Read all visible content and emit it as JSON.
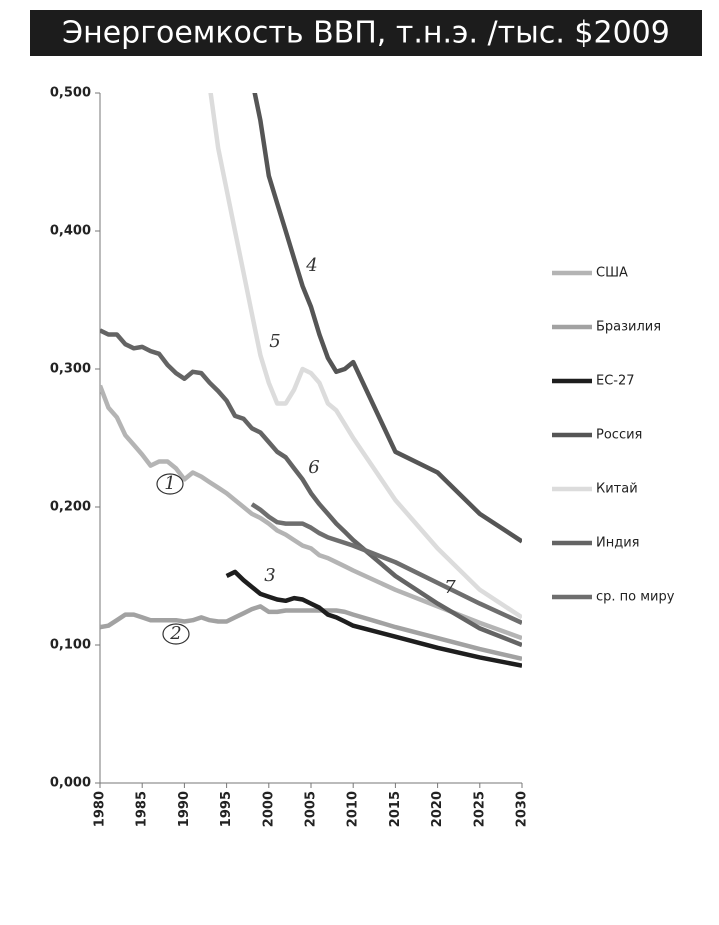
{
  "chart_data": {
    "type": "line",
    "title": "Энергоемкость ВВП, т.н.э. /тыс. $2009",
    "x": [
      1980,
      1981,
      1982,
      1983,
      1984,
      1985,
      1986,
      1987,
      1988,
      1989,
      1990,
      1991,
      1992,
      1993,
      1994,
      1995,
      1996,
      1997,
      1998,
      1999,
      2000,
      2001,
      2002,
      2003,
      2004,
      2005,
      2006,
      2007,
      2008,
      2009,
      2010,
      2015,
      2020,
      2025,
      2030
    ],
    "xlim": [
      1980,
      2030
    ],
    "xticks": [
      1980,
      1985,
      1990,
      1995,
      2000,
      2005,
      2010,
      2015,
      2020,
      2025,
      2030
    ],
    "ylim": [
      0,
      0.5
    ],
    "yticks": [
      {
        "value": 0,
        "label": "0,000"
      },
      {
        "value": 0.1,
        "label": "0,100"
      },
      {
        "value": 0.2,
        "label": "0,200"
      },
      {
        "value": 0.3,
        "label": "0,300"
      },
      {
        "value": 0.4,
        "label": "0,400"
      },
      {
        "value": 0.5,
        "label": "0,500"
      }
    ],
    "series": [
      {
        "name": "США",
        "color": "#b4b4b4",
        "values": [
          0.288,
          0.272,
          0.265,
          0.252,
          0.245,
          0.238,
          0.23,
          0.233,
          0.233,
          0.228,
          0.22,
          0.225,
          0.222,
          0.218,
          0.214,
          0.21,
          0.205,
          0.2,
          0.195,
          0.192,
          0.188,
          0.183,
          0.18,
          0.176,
          0.172,
          0.17,
          0.165,
          0.163,
          0.16,
          0.157,
          0.154,
          0.14,
          0.128,
          0.116,
          0.105
        ]
      },
      {
        "name": "Бразилия",
        "color": "#a2a2a2",
        "values": [
          0.113,
          0.114,
          0.118,
          0.122,
          0.122,
          0.12,
          0.118,
          0.118,
          0.118,
          0.118,
          0.117,
          0.118,
          0.12,
          0.118,
          0.117,
          0.117,
          0.12,
          0.123,
          0.126,
          0.128,
          0.124,
          0.124,
          0.125,
          0.125,
          0.125,
          0.125,
          0.125,
          0.125,
          0.125,
          0.124,
          0.122,
          0.113,
          0.105,
          0.097,
          0.09
        ]
      },
      {
        "name": "ЕС-27",
        "color": "#1e1e1e",
        "values": [
          null,
          null,
          null,
          null,
          null,
          null,
          null,
          null,
          null,
          null,
          null,
          null,
          null,
          null,
          null,
          0.15,
          0.153,
          0.147,
          0.142,
          0.137,
          0.135,
          0.133,
          0.132,
          0.134,
          0.133,
          0.13,
          0.127,
          0.122,
          0.12,
          0.117,
          0.114,
          0.106,
          0.098,
          0.091,
          0.085
        ]
      },
      {
        "name": "Россия",
        "color": "#555555",
        "values": [
          null,
          null,
          null,
          null,
          null,
          null,
          null,
          null,
          null,
          null,
          null,
          null,
          null,
          null,
          null,
          null,
          null,
          null,
          0.51,
          0.48,
          0.44,
          0.42,
          0.4,
          0.38,
          0.36,
          0.345,
          0.325,
          0.308,
          0.298,
          0.3,
          0.305,
          0.24,
          0.225,
          0.195,
          0.175
        ]
      },
      {
        "name": "Китай",
        "color": "#dcdcdc",
        "values": [
          null,
          null,
          null,
          null,
          null,
          null,
          null,
          null,
          null,
          null,
          null,
          null,
          null,
          0.505,
          0.46,
          0.43,
          0.4,
          0.37,
          0.34,
          0.31,
          0.29,
          0.275,
          0.275,
          0.285,
          0.3,
          0.297,
          0.29,
          0.275,
          0.27,
          0.26,
          0.25,
          0.205,
          0.17,
          0.14,
          0.12
        ]
      },
      {
        "name": "Индия",
        "color": "#646464",
        "values": [
          0.328,
          0.325,
          0.325,
          0.318,
          0.315,
          0.316,
          0.313,
          0.311,
          0.303,
          0.297,
          0.293,
          0.298,
          0.297,
          0.29,
          0.284,
          0.277,
          0.266,
          0.264,
          0.257,
          0.254,
          0.247,
          0.24,
          0.236,
          0.228,
          0.22,
          0.21,
          0.202,
          0.195,
          0.188,
          0.182,
          0.176,
          0.15,
          0.13,
          0.112,
          0.1
        ]
      },
      {
        "name": "ср. по миру",
        "color": "#6e6e6e",
        "values": [
          null,
          null,
          null,
          null,
          null,
          null,
          null,
          null,
          null,
          null,
          null,
          null,
          null,
          null,
          null,
          null,
          null,
          null,
          0.202,
          0.198,
          0.193,
          0.189,
          0.188,
          0.188,
          0.188,
          0.185,
          0.181,
          0.178,
          0.176,
          0.174,
          0.172,
          0.16,
          0.145,
          0.13,
          0.116
        ]
      }
    ],
    "annotations": [
      "1",
      "2",
      "3",
      "4",
      "5",
      "6",
      "7"
    ]
  }
}
